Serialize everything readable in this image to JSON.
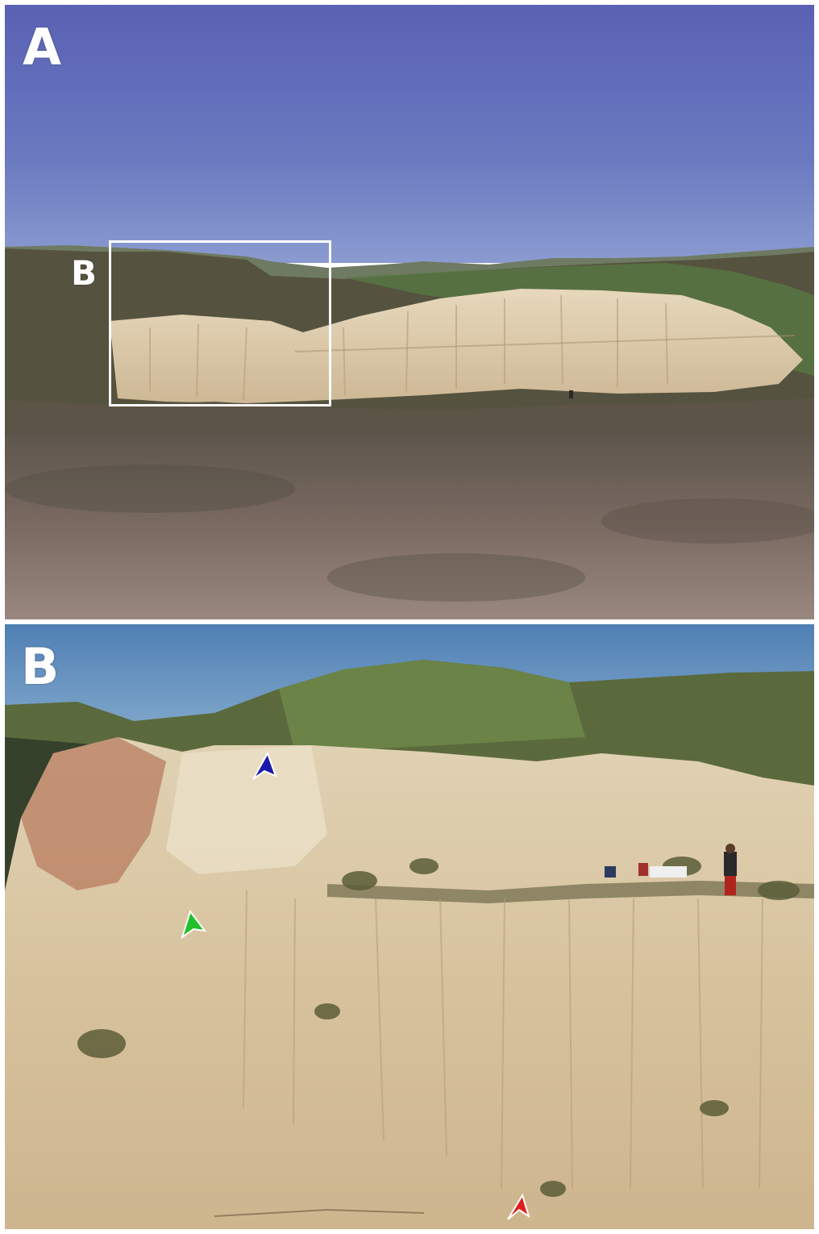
{
  "figure": {
    "panels": [
      {
        "id": "A",
        "label": "A",
        "inset_label": "B",
        "description_icons": [
          "inset-box"
        ]
      },
      {
        "id": "B",
        "label": "B"
      }
    ],
    "arrowhead_colors": {
      "blue": "#1a1aa8",
      "green": "#22c02a",
      "red": "#e01e1e"
    },
    "colors": {
      "sky_a": "#5f6fba",
      "sky_b": "#4f86b8",
      "outcrop": "#d8c29c",
      "field": "#6c5e56"
    }
  }
}
